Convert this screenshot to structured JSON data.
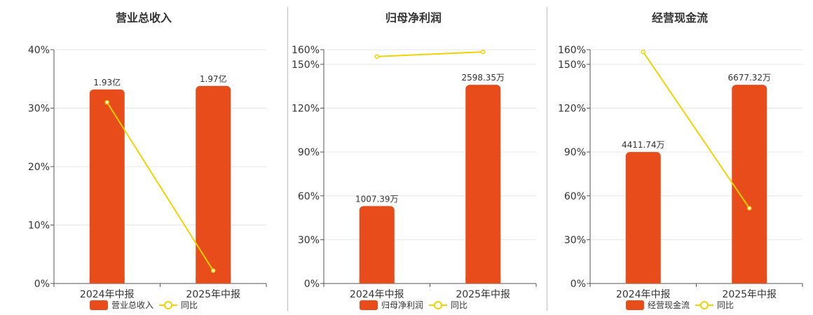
{
  "colors": {
    "bar": "#e84c1a",
    "line": "#f4d100",
    "axis": "#555555",
    "grid": "#e6e6e6"
  },
  "chart_data": [
    {
      "type": "bar",
      "title": "营业总收入",
      "categories": [
        "2024年中报",
        "2025年中报"
      ],
      "ylim": [
        0,
        0.4
      ],
      "yticks": [
        0,
        0.1,
        0.2,
        0.3,
        0.4
      ],
      "ytick_labels": [
        "0%",
        "10%",
        "20%",
        "30%",
        "40%"
      ],
      "series": [
        {
          "name": "营业总收入",
          "type": "bar",
          "values": [
            0.332,
            0.338
          ],
          "labels": [
            "1.93亿",
            "1.97亿"
          ]
        },
        {
          "name": "同比",
          "type": "line",
          "values": [
            0.31,
            0.022
          ]
        }
      ],
      "grid": true,
      "legend": "bottom"
    },
    {
      "type": "bar",
      "title": "归母净利润",
      "categories": [
        "2024年中报",
        "2025年中报"
      ],
      "ylim": [
        0,
        1.6
      ],
      "yticks": [
        0,
        0.3,
        0.6,
        0.9,
        1.2,
        1.5,
        1.6
      ],
      "ytick_labels": [
        "0%",
        "30%",
        "60%",
        "90%",
        "120%",
        "150%",
        "160%"
      ],
      "series": [
        {
          "name": "归母净利润",
          "type": "bar",
          "values": [
            0.53,
            1.36
          ],
          "labels": [
            "1007.39万",
            "2598.35万"
          ]
        },
        {
          "name": "同比",
          "type": "line",
          "values": [
            1.553,
            1.585
          ]
        }
      ],
      "grid": true,
      "legend": "bottom"
    },
    {
      "type": "bar",
      "title": "经营现金流",
      "categories": [
        "2024年中报",
        "2025年中报"
      ],
      "ylim": [
        0,
        1.6
      ],
      "yticks": [
        0,
        0.3,
        0.6,
        0.9,
        1.2,
        1.5,
        1.6
      ],
      "ytick_labels": [
        "0%",
        "30%",
        "60%",
        "90%",
        "120%",
        "150%",
        "160%"
      ],
      "series": [
        {
          "name": "经营现金流",
          "type": "bar",
          "values": [
            0.9,
            1.36
          ],
          "labels": [
            "4411.74万",
            "6677.32万"
          ]
        },
        {
          "name": "同比",
          "type": "line",
          "values": [
            1.585,
            0.515
          ]
        }
      ],
      "grid": true,
      "legend": "bottom"
    }
  ]
}
